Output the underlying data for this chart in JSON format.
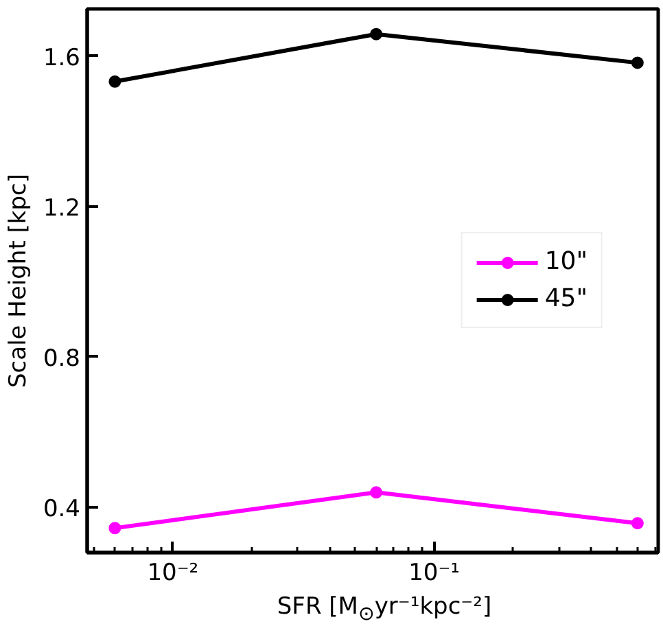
{
  "chart_data": {
    "type": "line",
    "xlabel": "SFR [M$_{⊙}$yr⁻¹kpc⁻²]",
    "ylabel": "Scale Height [kpc]",
    "log": "x",
    "x": [
      0.006,
      0.06,
      0.6
    ],
    "series": [
      {
        "name": "10\"",
        "color": "#ff00ff",
        "values": [
          0.345,
          0.44,
          0.358
        ]
      },
      {
        "name": "45\"",
        "color": "#000000",
        "values": [
          1.532,
          1.658,
          1.582
        ]
      }
    ],
    "xlim": [
      0.0047,
      0.72
    ],
    "ylim": [
      0.28,
      1.725
    ],
    "xticks": [
      {
        "value": 0.01,
        "label": "10⁻²"
      },
      {
        "value": 0.1,
        "label": "10⁻¹"
      }
    ],
    "yticks": [
      0.4,
      0.8,
      1.2,
      1.6
    ],
    "marker": "circle",
    "line_style": "solid",
    "grid": false,
    "legend": "right"
  }
}
